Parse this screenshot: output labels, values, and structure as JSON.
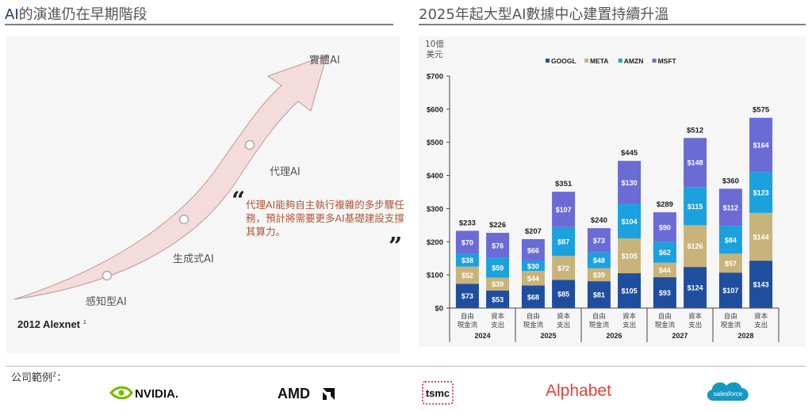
{
  "left": {
    "title_prefix": "AI",
    "title_rest": "的演進仍在早期階段",
    "stages": [
      "感知型AI",
      "生成式AI",
      "代理AI",
      "實體AI"
    ],
    "quote": "代理AI能夠自主執行複雜的多步驟任務，預計將需要更多AI基礎建設支撐其算力。",
    "quote_open": "“",
    "quote_close": "”",
    "milestone": "2012 Alexnet",
    "milestone_note": "1"
  },
  "right": {
    "title": "2025年起大型AI數據中心建置持續升溫"
  },
  "footer": {
    "label": "公司範例",
    "label_note": "2",
    "label_colon": "：",
    "companies": [
      "NVIDIA.",
      "AMD",
      "tsmc",
      "Alphabet",
      "salesforce"
    ]
  },
  "colors": {
    "GOOGL": "#1f4e9e",
    "META": "#c8b47a",
    "AMZN": "#1ba1dd",
    "MSFT": "#6b6bd6",
    "arrow": "#f3dada",
    "nvidia": "#76b900",
    "alphabet": "#e8413a",
    "salesforce": "#1798c1",
    "tsmc": "#d0121b"
  },
  "chart_data": {
    "type": "bar",
    "stacked": true,
    "unit": "10億 美元",
    "ylim": [
      0,
      700
    ],
    "yticks": [
      "$0",
      "$100",
      "$200",
      "$300",
      "$400",
      "$500",
      "$600",
      "$700"
    ],
    "years": [
      "2024",
      "2025",
      "2026",
      "2027",
      "2028"
    ],
    "categories": [
      "自由 現金流",
      "資本 支出",
      "自由 現金流",
      "資本 支出",
      "自由 現金流",
      "資本 支出",
      "自由 現金流",
      "資本 支出",
      "自由 現金流",
      "資本 支出"
    ],
    "category_lines": [
      [
        "自由",
        "現金流"
      ],
      [
        "資本",
        "支出"
      ]
    ],
    "totals": [
      "$233",
      "$226",
      "$207",
      "$351",
      "$240",
      "$445",
      "$289",
      "$512",
      "$360",
      "$575"
    ],
    "series": [
      {
        "name": "GOOGL",
        "values": [
          73,
          53,
          68,
          85,
          81,
          105,
          93,
          124,
          107,
          143
        ]
      },
      {
        "name": "META",
        "values": [
          52,
          39,
          44,
          72,
          39,
          105,
          44,
          126,
          57,
          144
        ]
      },
      {
        "name": "AMZN",
        "values": [
          38,
          59,
          30,
          87,
          48,
          104,
          62,
          115,
          84,
          123
        ]
      },
      {
        "name": "MSFT",
        "values": [
          70,
          76,
          66,
          107,
          73,
          130,
          90,
          148,
          112,
          164
        ]
      }
    ]
  }
}
